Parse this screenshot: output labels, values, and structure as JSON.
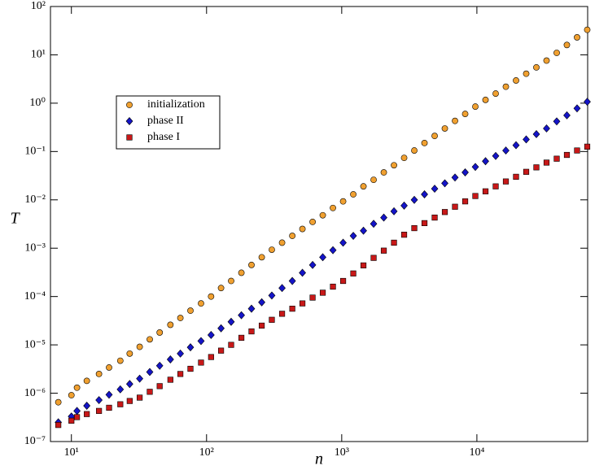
{
  "chart_data": {
    "type": "scatter",
    "x_label": "n",
    "y_label": "T",
    "xlog": true,
    "ylog": true,
    "legend": "upper-left",
    "xlim": [
      7,
      66000
    ],
    "ylim": [
      1e-07,
      100
    ],
    "xticks": [
      {
        "value": 10,
        "label": "10¹"
      },
      {
        "value": 100,
        "label": "10²"
      },
      {
        "value": 1000,
        "label": "10³"
      },
      {
        "value": 10000,
        "label": "10⁴"
      }
    ],
    "yticks": [
      {
        "value": 1e-07,
        "label": "10⁻⁷"
      },
      {
        "value": 1e-06,
        "label": "10⁻⁶"
      },
      {
        "value": 1e-05,
        "label": "10⁻⁵"
      },
      {
        "value": 0.0001,
        "label": "10⁻⁴"
      },
      {
        "value": 0.001,
        "label": "10⁻³"
      },
      {
        "value": 0.01,
        "label": "10⁻²"
      },
      {
        "value": 0.1,
        "label": "10⁻¹"
      },
      {
        "value": 1,
        "label": "10⁰"
      },
      {
        "value": 10,
        "label": "10¹"
      },
      {
        "value": 100,
        "label": "10²"
      }
    ],
    "x": [
      8,
      10,
      11,
      13,
      16,
      19,
      23,
      27,
      32,
      38,
      45,
      54,
      64,
      76,
      91,
      108,
      128,
      152,
      181,
      215,
      256,
      304,
      362,
      431,
      512,
      609,
      724,
      861,
      1024,
      1218,
      1448,
      1722,
      2048,
      2436,
      2896,
      3444,
      4096,
      4871,
      5793,
      6889,
      8192,
      9742,
      11585,
      13777,
      16384,
      19484,
      23170,
      27554,
      32768,
      38968,
      46341,
      55109,
      65536
    ],
    "series": [
      {
        "name": "initialization",
        "color": "#f0a030",
        "marker": "circle",
        "values": [
          6.5e-07,
          9.1e-07,
          1.3e-06,
          1.8e-06,
          2.5e-06,
          3.4e-06,
          4.7e-06,
          6.6e-06,
          9.1e-06,
          1.3e-05,
          1.8e-05,
          2.6e-05,
          3.6e-05,
          5.1e-05,
          7.2e-05,
          0.0001,
          0.00015,
          0.00021,
          0.00031,
          0.00045,
          0.00065,
          0.00093,
          0.0013,
          0.0018,
          0.0025,
          0.0035,
          0.0048,
          0.0068,
          0.0093,
          0.013,
          0.019,
          0.026,
          0.037,
          0.052,
          0.074,
          0.105,
          0.15,
          0.21,
          0.3,
          0.43,
          0.6,
          0.85,
          1.17,
          1.58,
          2.19,
          2.95,
          4.07,
          5.5,
          7.6,
          11,
          16,
          23,
          33
        ]
      },
      {
        "name": "phase II",
        "color": "#1414c8",
        "marker": "diamond",
        "values": [
          2.5e-07,
          3.3e-07,
          4.3e-07,
          5.5e-07,
          7.2e-07,
          9.3e-07,
          1.2e-06,
          1.55e-06,
          2e-06,
          2.75e-06,
          3.7e-06,
          5e-06,
          6.6e-06,
          8.9e-06,
          1.2e-05,
          1.6e-05,
          2.2e-05,
          3e-05,
          4.1e-05,
          5.6e-05,
          7.6e-05,
          0.000105,
          0.00015,
          0.00021,
          0.00031,
          0.00045,
          0.00065,
          0.00091,
          0.0013,
          0.0018,
          0.0023,
          0.0032,
          0.0043,
          0.0058,
          0.0076,
          0.01,
          0.013,
          0.017,
          0.022,
          0.029,
          0.037,
          0.048,
          0.063,
          0.081,
          0.105,
          0.135,
          0.178,
          0.229,
          0.3,
          0.42,
          0.56,
          0.78,
          1.07
        ]
      },
      {
        "name": "phase I",
        "color": "#c81818",
        "marker": "square",
        "values": [
          2.2e-07,
          2.7e-07,
          3.2e-07,
          3.7e-07,
          4.3e-07,
          5e-07,
          5.9e-07,
          6.9e-07,
          8.1e-07,
          1.07e-06,
          1.4e-06,
          1.9e-06,
          2.5e-06,
          3.2e-06,
          4.3e-06,
          5.6e-06,
          7.6e-06,
          1e-05,
          1.4e-05,
          1.9e-05,
          2.5e-05,
          3.3e-05,
          4.4e-05,
          5.6e-05,
          7.2e-05,
          9.5e-05,
          0.00012,
          0.00016,
          0.00021,
          0.0003,
          0.00044,
          0.00063,
          0.00089,
          0.0013,
          0.0019,
          0.0026,
          0.0033,
          0.0043,
          0.0056,
          0.0072,
          0.0093,
          0.012,
          0.015,
          0.019,
          0.024,
          0.03,
          0.038,
          0.047,
          0.059,
          0.071,
          0.085,
          0.105,
          0.126
        ]
      }
    ]
  }
}
